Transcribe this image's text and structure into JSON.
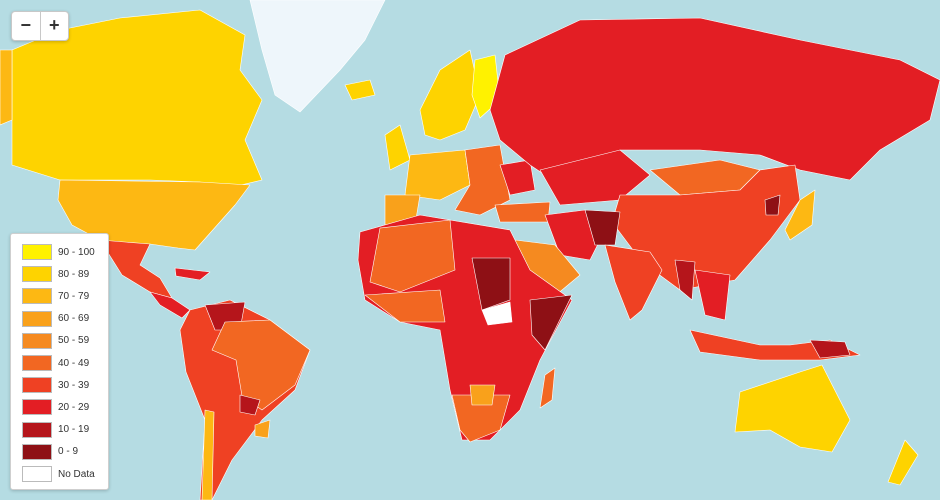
{
  "zoom_controls": {
    "zoom_out": "−",
    "zoom_in": "+"
  },
  "legend": {
    "items": [
      {
        "label": "90 - 100",
        "color": "#fff200"
      },
      {
        "label": "80 - 89",
        "color": "#fed300"
      },
      {
        "label": "70 - 79",
        "color": "#fdb813"
      },
      {
        "label": "60 - 69",
        "color": "#f9a11b"
      },
      {
        "label": "50 - 59",
        "color": "#f58a20"
      },
      {
        "label": "40 - 49",
        "color": "#f26722"
      },
      {
        "label": "30 - 39",
        "color": "#ef4123"
      },
      {
        "label": "20 - 29",
        "color": "#e31e24"
      },
      {
        "label": "10 - 19",
        "color": "#b5151b"
      },
      {
        "label": "0 - 9",
        "color": "#8e1015"
      },
      {
        "label": "No Data",
        "color": "#ffffff"
      }
    ]
  }
}
